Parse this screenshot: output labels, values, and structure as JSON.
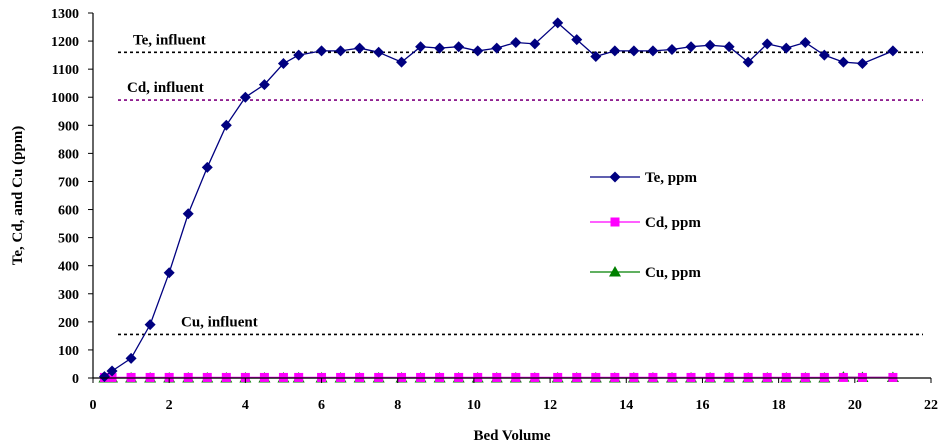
{
  "chart_data": {
    "type": "line",
    "title": "",
    "xlabel": "Bed Volume",
    "ylabel": "Te, Cd, and Cu (ppm)",
    "xlim": [
      0,
      22
    ],
    "ylim": [
      0,
      1300
    ],
    "xticks": [
      0,
      2,
      4,
      6,
      8,
      10,
      12,
      14,
      16,
      18,
      20,
      22
    ],
    "yticks": [
      0,
      100,
      200,
      300,
      400,
      500,
      600,
      700,
      800,
      900,
      1000,
      1100,
      1200,
      1300
    ],
    "grid": false,
    "legend_position": "right",
    "series": [
      {
        "name": "Te, ppm",
        "color": "#000080",
        "marker": "diamond",
        "x": [
          0.3,
          0.5,
          1.0,
          1.5,
          2.0,
          2.5,
          3.0,
          3.5,
          4.0,
          4.5,
          5.0,
          5.4,
          6.0,
          6.5,
          7.0,
          7.5,
          8.1,
          8.6,
          9.1,
          9.6,
          10.1,
          10.6,
          11.1,
          11.6,
          12.2,
          12.7,
          13.2,
          13.7,
          14.2,
          14.7,
          15.2,
          15.7,
          16.2,
          16.7,
          17.2,
          17.7,
          18.2,
          18.7,
          19.2,
          19.7,
          20.2,
          21.0
        ],
        "y": [
          5,
          25,
          70,
          190,
          375,
          585,
          750,
          900,
          1000,
          1045,
          1120,
          1150,
          1165,
          1165,
          1175,
          1160,
          1125,
          1180,
          1175,
          1180,
          1165,
          1175,
          1195,
          1190,
          1265,
          1205,
          1145,
          1165,
          1165,
          1165,
          1170,
          1180,
          1185,
          1180,
          1125,
          1190,
          1175,
          1195,
          1150,
          1125,
          1120,
          1165
        ]
      },
      {
        "name": "Cd, ppm",
        "color": "#FF00FF",
        "marker": "square",
        "x": [
          0.3,
          0.5,
          1.0,
          1.5,
          2.0,
          2.5,
          3.0,
          3.5,
          4.0,
          4.5,
          5.0,
          5.4,
          6.0,
          6.5,
          7.0,
          7.5,
          8.1,
          8.6,
          9.1,
          9.6,
          10.1,
          10.6,
          11.1,
          11.6,
          12.2,
          12.7,
          13.2,
          13.7,
          14.2,
          14.7,
          15.2,
          15.7,
          16.2,
          16.7,
          17.2,
          17.7,
          18.2,
          18.7,
          19.2,
          19.7,
          20.2,
          21.0
        ],
        "y": [
          2,
          2,
          2,
          2,
          2,
          2,
          2,
          2,
          2,
          2,
          2,
          2,
          2,
          2,
          2,
          2,
          2,
          2,
          2,
          2,
          2,
          2,
          2,
          2,
          2,
          2,
          2,
          2,
          2,
          2,
          2,
          2,
          2,
          2,
          2,
          2,
          2,
          2,
          2,
          2,
          2,
          2
        ]
      },
      {
        "name": "Cu, ppm",
        "color": "#008000",
        "marker": "triangle",
        "x": [
          0.3,
          0.5,
          1.0,
          1.5,
          2.0,
          2.5,
          3.0,
          3.5,
          4.0,
          4.5,
          5.0,
          5.4,
          6.0,
          6.5,
          7.0,
          7.5,
          8.1,
          8.6,
          9.1,
          9.6,
          10.1,
          10.6,
          11.1,
          11.6,
          12.2,
          12.7,
          13.2,
          13.7,
          14.2,
          14.7,
          15.2,
          15.7,
          16.2,
          16.7,
          17.2,
          17.7,
          18.2,
          18.7,
          19.2,
          19.7,
          20.2,
          21.0
        ],
        "y": [
          0,
          0,
          0,
          0,
          0,
          0,
          0,
          0,
          0,
          0,
          0,
          0,
          0,
          0,
          0,
          0,
          0,
          0,
          0,
          0,
          0,
          0,
          0,
          0,
          0,
          0,
          0,
          0,
          0,
          0,
          0,
          0,
          0,
          0,
          0,
          0,
          0,
          0,
          0,
          3,
          2,
          2
        ]
      }
    ],
    "reference_lines": [
      {
        "label": "Te, influent",
        "y": 1160,
        "color": "#000000"
      },
      {
        "label": "Cd, influent",
        "y": 990,
        "color": "#800080"
      },
      {
        "label": "Cu, influent",
        "y": 155,
        "color": "#000000"
      }
    ]
  }
}
